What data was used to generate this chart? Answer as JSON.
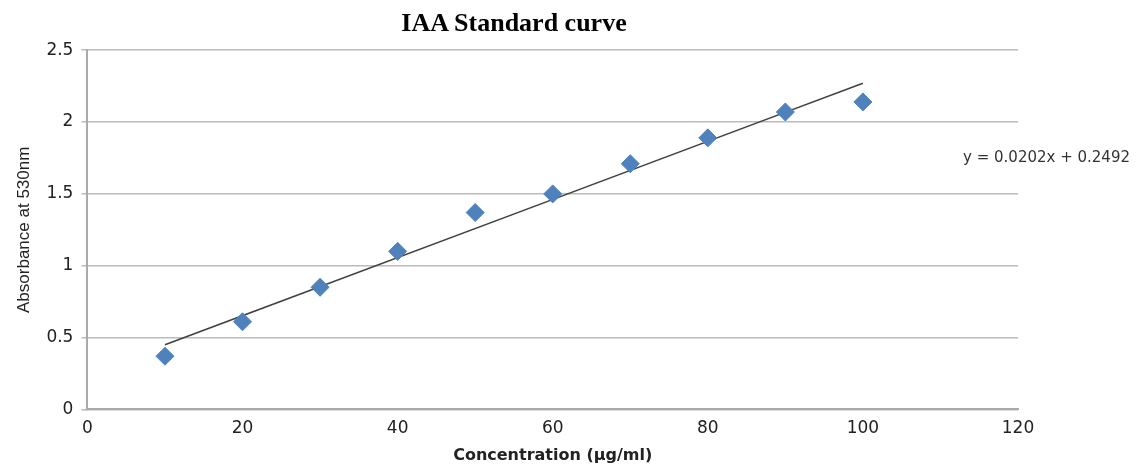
{
  "chart_data": {
    "type": "scatter",
    "title": "IAA Standard curve",
    "xlabel": "Concentration (µg/ml)",
    "ylabel": "Absorbance at 530nm",
    "x": [
      10,
      20,
      30,
      40,
      50,
      60,
      70,
      80,
      90,
      100
    ],
    "series": [
      {
        "color": "#4f81bd",
        "values": [
          0.37,
          0.61,
          0.85,
          1.1,
          1.37,
          1.5,
          1.71,
          1.89,
          2.07,
          2.14
        ],
        "marker": "diamond"
      },
      {
        "type": "line",
        "color": "#404040",
        "x": [
          10,
          100
        ],
        "values": [
          0.45,
          2.27
        ],
        "marker": "none"
      }
    ],
    "xlim": [
      0,
      120
    ],
    "xticks": [
      0,
      20,
      40,
      60,
      80,
      100,
      120
    ],
    "ylim": [
      0,
      2.5
    ],
    "yticks": [
      0,
      0.5,
      1,
      1.5,
      2,
      2.5
    ],
    "grid": "y",
    "annotations": [
      "y = 0.0202x + 0.2492"
    ]
  }
}
